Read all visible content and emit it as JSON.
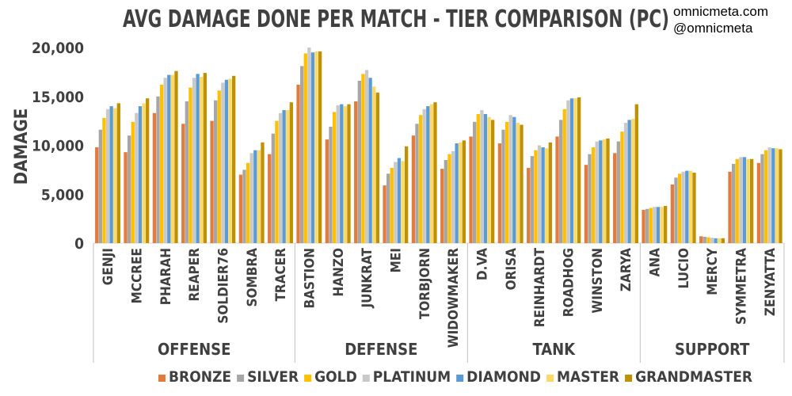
{
  "title": "AVG DAMAGE DONE PER MATCH - TIER COMPARISON (PC)",
  "credit": [
    "omnicmeta.com",
    "@omnicmeta"
  ],
  "chart_data": {
    "type": "bar",
    "title": "AVG DAMAGE DONE PER MATCH - TIER COMPARISON (PC)",
    "ylabel": "DAMAGE",
    "xlabel": "",
    "ylim": [
      0,
      20000
    ],
    "yticks": [
      "0",
      "5,000",
      "10,000",
      "15,000",
      "20,000"
    ],
    "ytick_values": [
      0,
      5000,
      10000,
      15000,
      20000
    ],
    "grid": false,
    "legend_position": "bottom",
    "groups": [
      {
        "name": "OFFENSE",
        "count": 7
      },
      {
        "name": "DEFENSE",
        "count": 6
      },
      {
        "name": "TANK",
        "count": 6
      },
      {
        "name": "SUPPORT",
        "count": 5
      }
    ],
    "categories": [
      "GENJI",
      "MCCREE",
      "PHARAH",
      "REAPER",
      "SOLDIER76",
      "SOMBRA",
      "TRACER",
      "BASTION",
      "HANZO",
      "JUNKRAT",
      "MEI",
      "TORBJORN",
      "WIDOWMAKER",
      "D.VA",
      "ORISA",
      "REINHARDT",
      "ROADHOG",
      "WINSTON",
      "ZARYA",
      "ANA",
      "LUCIO",
      "MERCY",
      "SYMMETRA",
      "ZENYATTA"
    ],
    "series": [
      {
        "name": "BRONZE",
        "color": "#e37b3c",
        "values": [
          9800,
          9300,
          13300,
          12200,
          12500,
          7000,
          9100,
          16200,
          10600,
          14500,
          5900,
          11000,
          7600,
          10900,
          10200,
          7700,
          10900,
          8000,
          9200,
          3400,
          6000,
          700,
          7300,
          8200
        ]
      },
      {
        "name": "SILVER",
        "color": "#a6a6a6",
        "values": [
          11600,
          11000,
          15000,
          14500,
          14600,
          7500,
          11200,
          18100,
          11900,
          16600,
          7100,
          12200,
          8500,
          12400,
          11600,
          8900,
          12600,
          9100,
          10400,
          3500,
          6700,
          650,
          8100,
          9100
        ]
      },
      {
        "name": "GOLD",
        "color": "#ffc000",
        "values": [
          12800,
          12400,
          16200,
          15900,
          15600,
          8200,
          12500,
          19400,
          13400,
          17300,
          7700,
          13100,
          9100,
          13200,
          12400,
          9500,
          13700,
          9800,
          11400,
          3600,
          7100,
          600,
          8600,
          9500
        ]
      },
      {
        "name": "PLATINUM",
        "color": "#c9c9c9",
        "values": [
          13700,
          13300,
          16900,
          16900,
          16400,
          9200,
          13300,
          20000,
          14100,
          17700,
          8300,
          13700,
          9400,
          13600,
          13100,
          10000,
          14600,
          10400,
          12300,
          3700,
          7300,
          550,
          8800,
          9800
        ]
      },
      {
        "name": "DIAMOND",
        "color": "#5b9bd5",
        "values": [
          14000,
          14000,
          17200,
          17300,
          16700,
          9500,
          13600,
          19500,
          14200,
          16900,
          8700,
          14000,
          10200,
          13200,
          12900,
          9800,
          14800,
          10500,
          12600,
          3700,
          7400,
          500,
          8800,
          9700
        ]
      },
      {
        "name": "MASTER",
        "color": "#ffd966",
        "values": [
          13800,
          14300,
          17200,
          17000,
          16800,
          9500,
          13600,
          19600,
          14000,
          16000,
          8400,
          14200,
          10300,
          12900,
          12300,
          9700,
          14800,
          10600,
          12700,
          3700,
          7400,
          500,
          8600,
          9700
        ]
      },
      {
        "name": "GRANDMASTER",
        "color": "#bf9000",
        "values": [
          14300,
          14800,
          17600,
          17400,
          17100,
          10300,
          14400,
          19600,
          14200,
          15400,
          9900,
          14400,
          10500,
          12600,
          12100,
          10300,
          14900,
          10700,
          14200,
          3800,
          7200,
          500,
          8600,
          9600
        ]
      }
    ]
  }
}
